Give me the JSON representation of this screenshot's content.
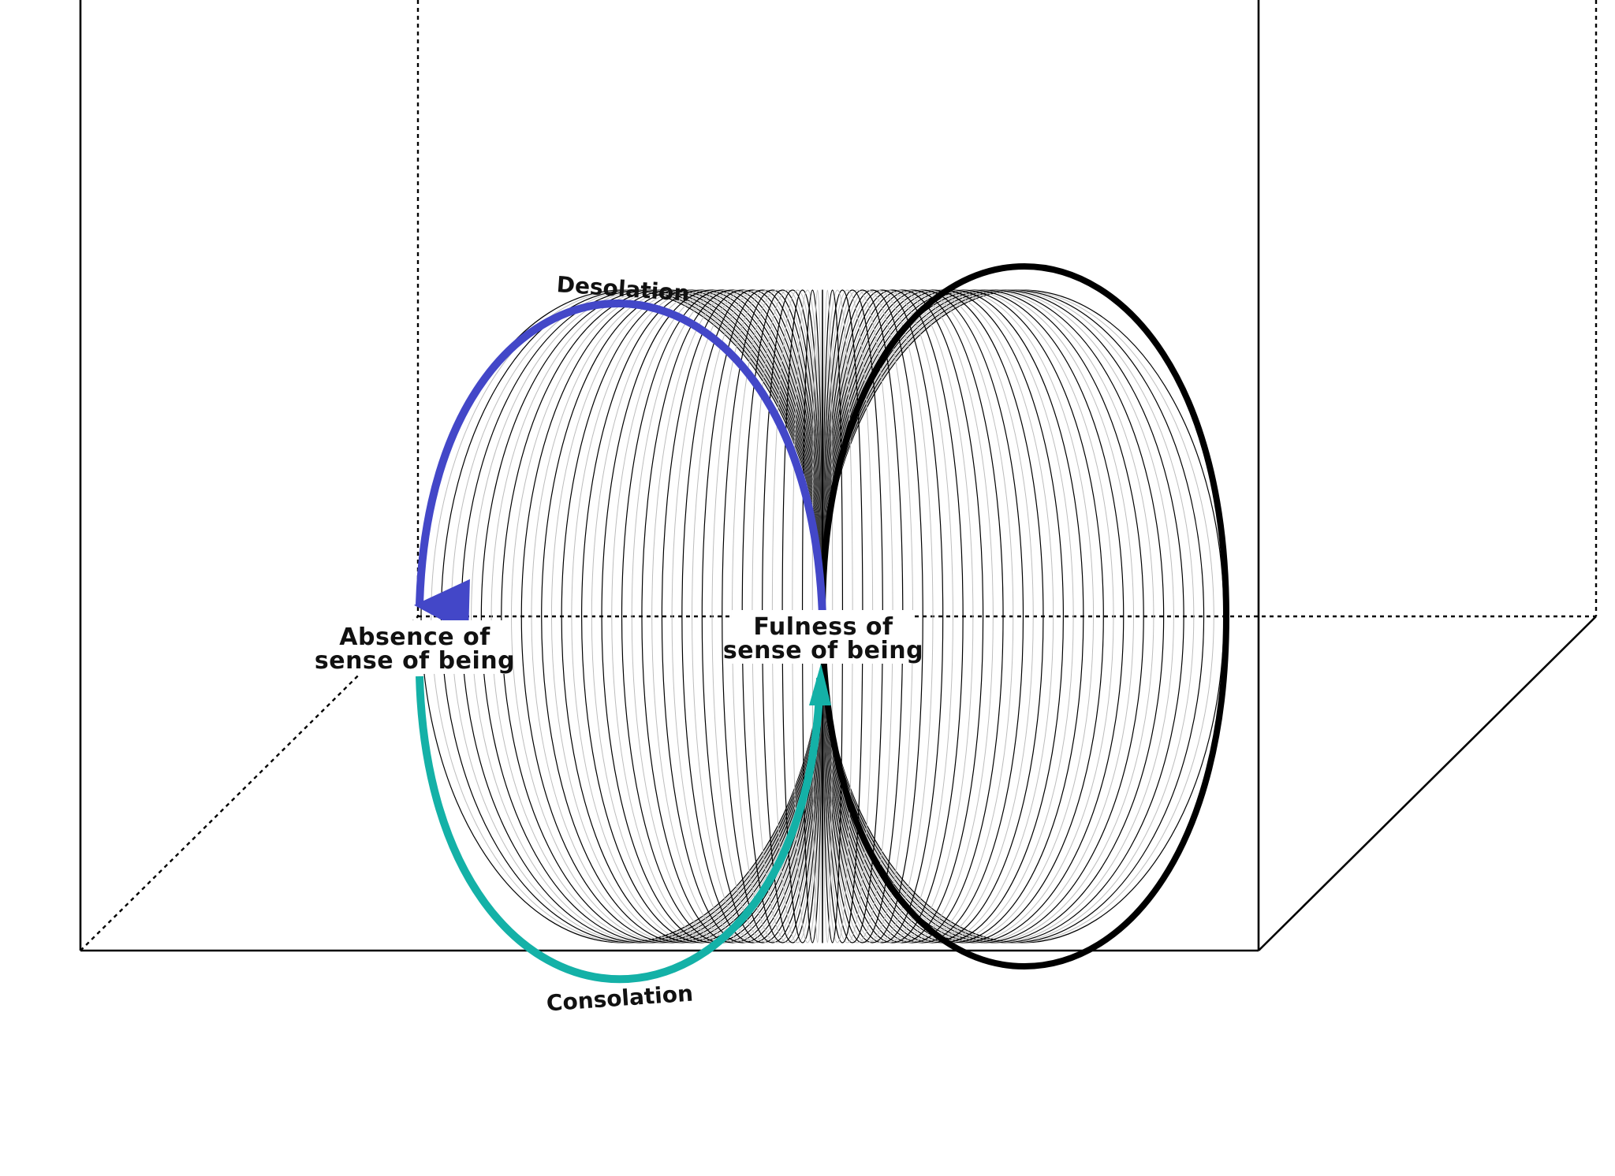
{
  "diagram": {
    "labels": {
      "desolation": "Desolation",
      "consolation": "Consolation",
      "absence_line1": "Absence of",
      "absence_line2": "sense of being",
      "fulness_line1": "Fulness of",
      "fulness_line2": "sense of being"
    },
    "colors": {
      "desolation_arc": "#4347c8",
      "consolation_arc": "#14b1a7",
      "ellipse_lines": "#000000",
      "ellipse_lines_faint": "#bdbdbd",
      "box_lines": "#000000",
      "background": "#ffffff"
    }
  }
}
